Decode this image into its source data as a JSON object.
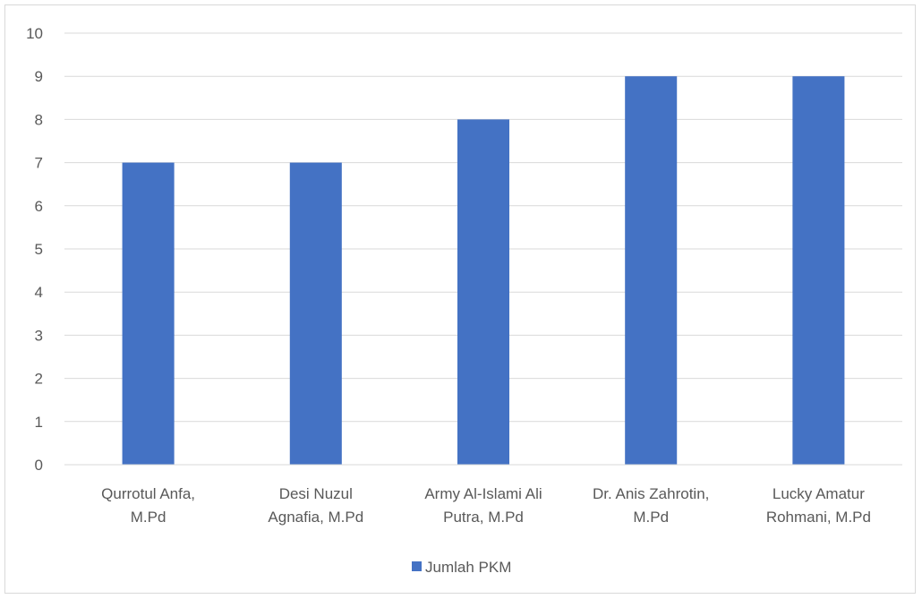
{
  "chart_data": {
    "type": "bar",
    "categories": [
      [
        "Qurrotul Anfa,",
        "M.Pd"
      ],
      [
        "Desi Nuzul",
        "Agnafia, M.Pd"
      ],
      [
        "Army Al-Islami Ali",
        "Putra, M.Pd"
      ],
      [
        "Dr. Anis Zahrotin,",
        "M.Pd"
      ],
      [
        "Lucky Amatur",
        "Rohmani, M.Pd"
      ]
    ],
    "series": [
      {
        "name": "Jumlah PKM",
        "values": [
          7,
          7,
          8,
          9,
          9
        ],
        "color": "#4472C4"
      }
    ],
    "title": "",
    "xlabel": "",
    "ylabel": "",
    "ylim": [
      0,
      10
    ],
    "yticks": [
      "0",
      "1",
      "2",
      "3",
      "4",
      "5",
      "6",
      "7",
      "8",
      "9",
      "10"
    ],
    "grid": true,
    "legend_position": "bottom",
    "gridline_color": "#d9d9d9"
  }
}
